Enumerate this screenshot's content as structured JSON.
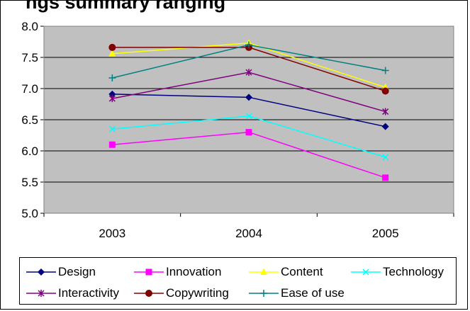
{
  "chart_data": {
    "type": "line",
    "title": "ngs summary ranging",
    "categories": [
      "2003",
      "2004",
      "2005"
    ],
    "ylim": [
      5.0,
      8.0
    ],
    "yticks": [
      "5.0",
      "5.5",
      "6.0",
      "6.5",
      "7.0",
      "7.5",
      "8.0"
    ],
    "grid": "horizontal",
    "plot_background": "#C0C0C0",
    "legend_position": "bottom",
    "series": [
      {
        "name": "Design",
        "values": [
          6.91,
          6.86,
          6.39
        ],
        "color": "#000080",
        "marker": "diamond"
      },
      {
        "name": "Innovation",
        "values": [
          6.1,
          6.3,
          5.57
        ],
        "color": "#FF00FF",
        "marker": "square"
      },
      {
        "name": "Content",
        "values": [
          7.56,
          7.73,
          7.02
        ],
        "color": "#FFFF00",
        "marker": "triangle"
      },
      {
        "name": "Technology",
        "values": [
          6.35,
          6.56,
          5.9
        ],
        "color": "#00FFFF",
        "marker": "x"
      },
      {
        "name": "Interactivity",
        "values": [
          6.84,
          7.26,
          6.63
        ],
        "color": "#800080",
        "marker": "star"
      },
      {
        "name": "Copywriting",
        "values": [
          7.66,
          7.66,
          6.96
        ],
        "color": "#800000",
        "marker": "circle"
      },
      {
        "name": "Ease of use",
        "values": [
          7.17,
          7.7,
          7.29
        ],
        "color": "#008080",
        "marker": "plus"
      }
    ]
  }
}
